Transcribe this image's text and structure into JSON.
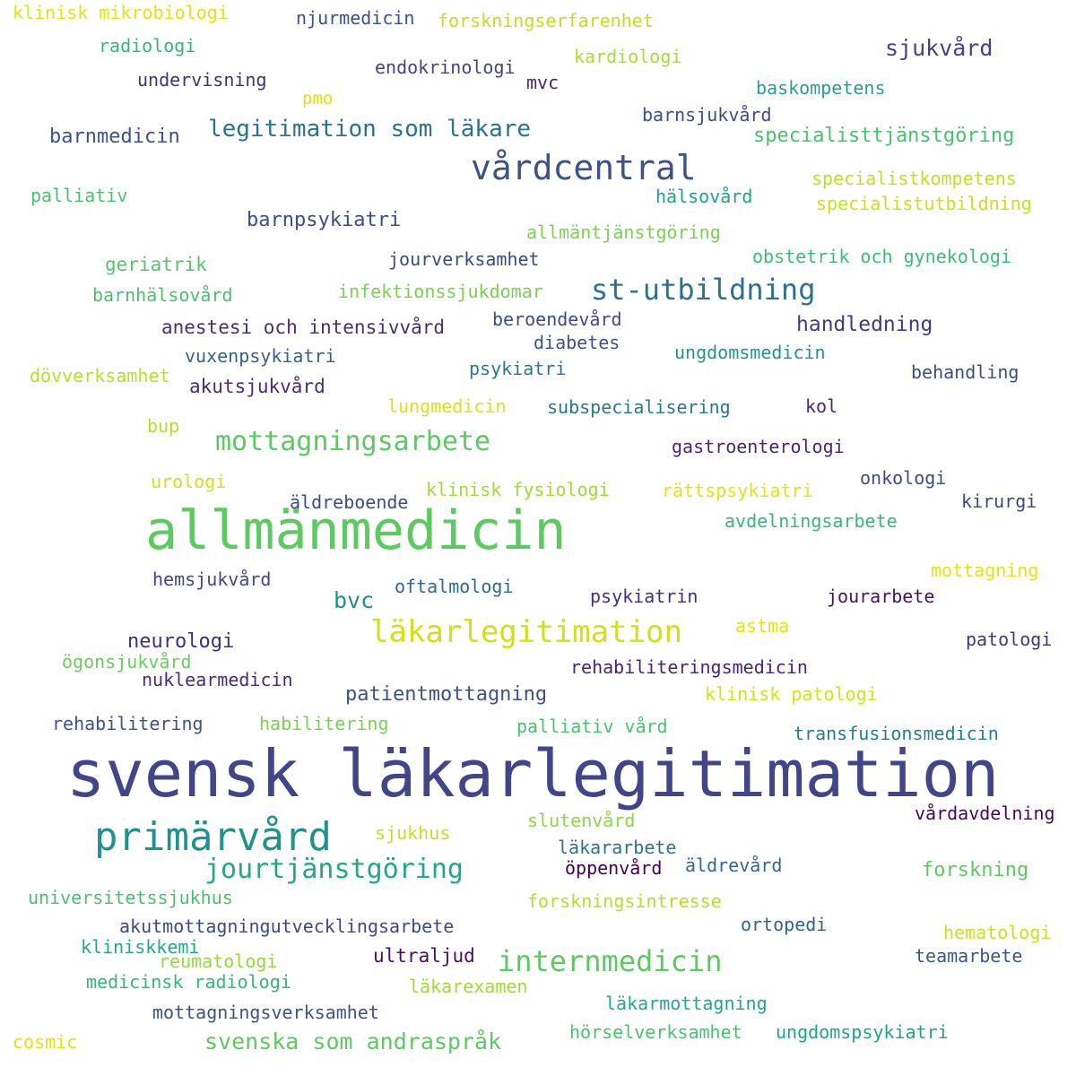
{
  "words": [
    {
      "text": "svensk läkarlegitimation",
      "color": "#404688"
    },
    {
      "text": "allmänmedicin",
      "color": "#5ec962"
    },
    {
      "text": "primärvård",
      "color": "#21918c"
    },
    {
      "text": "vårdcentral",
      "color": "#3b528b"
    },
    {
      "text": "läkarlegitimation",
      "color": "#d0e11c"
    },
    {
      "text": "st-utbildning",
      "color": "#2c728e"
    },
    {
      "text": "internmedicin",
      "color": "#5ec962"
    },
    {
      "text": "mottagningsarbete",
      "color": "#5ec962"
    },
    {
      "text": "jourtjänstgöring",
      "color": "#22a884"
    },
    {
      "text": "legitimation som läkare",
      "color": "#2c728e"
    },
    {
      "text": "svenska som andraspråk",
      "color": "#5ec962"
    },
    {
      "text": "sjukvård",
      "color": "#414487"
    },
    {
      "text": "bvc",
      "color": "#21918c"
    },
    {
      "text": "handledning",
      "color": "#443983"
    },
    {
      "text": "patientmottagning",
      "color": "#3b528b"
    },
    {
      "text": "forskning",
      "color": "#5ec962"
    },
    {
      "text": "barnmedicin",
      "color": "#3b528b"
    },
    {
      "text": "specialisttjänstgöring",
      "color": "#4ac16d"
    },
    {
      "text": "barnpsykiatri",
      "color": "#3e4c8a"
    },
    {
      "text": "neurologi",
      "color": "#3f2f7e"
    },
    {
      "text": "akutsjukvård",
      "color": "#472d7b"
    },
    {
      "text": "specialistkompetens",
      "color": "#bddf26"
    },
    {
      "text": "specialistutbildning",
      "color": "#c8e020"
    },
    {
      "text": "klinisk mikrobiologi",
      "color": "#dfe318"
    },
    {
      "text": "njurmedicin",
      "color": "#3b528b"
    },
    {
      "text": "forskningserfarenhet",
      "color": "#bddf26"
    },
    {
      "text": "radiologi",
      "color": "#35b779"
    },
    {
      "text": "kardiologi",
      "color": "#a8db34"
    },
    {
      "text": "endokrinologi",
      "color": "#414487"
    },
    {
      "text": "undervisning",
      "color": "#46307e"
    },
    {
      "text": "mvc",
      "color": "#482576"
    },
    {
      "text": "pmo",
      "color": "#d8e219"
    },
    {
      "text": "baskompetens",
      "color": "#2a9d8f"
    },
    {
      "text": "barnsjukvård",
      "color": "#3e4c8a"
    },
    {
      "text": "palliativ",
      "color": "#4ac16d"
    },
    {
      "text": "hälsovård",
      "color": "#1fa187"
    },
    {
      "text": "allmäntjänstgöring",
      "color": "#7ad151"
    },
    {
      "text": "geriatrik",
      "color": "#54c568"
    },
    {
      "text": "jourverksamhet",
      "color": "#3e4989"
    },
    {
      "text": "obstetrik och gynekologi",
      "color": "#3dbc74"
    },
    {
      "text": "barnhälsovård",
      "color": "#4ac16d"
    },
    {
      "text": "infektionssjukdomar",
      "color": "#7ad151"
    },
    {
      "text": "anestesi och intensivvård",
      "color": "#472d7b"
    },
    {
      "text": "beroendevård",
      "color": "#3e4989"
    },
    {
      "text": "diabetes",
      "color": "#39568c"
    },
    {
      "text": "ungdomsmedicin",
      "color": "#1f968b"
    },
    {
      "text": "vuxenpsykiatri",
      "color": "#33638d"
    },
    {
      "text": "psykiatri",
      "color": "#2a788e"
    },
    {
      "text": "behandling",
      "color": "#3e4c8a"
    },
    {
      "text": "dövverksamhet",
      "color": "#b5de2b"
    },
    {
      "text": "lungmedicin",
      "color": "#d8e219"
    },
    {
      "text": "subspecialisering",
      "color": "#2a788e"
    },
    {
      "text": "kol",
      "color": "#482878"
    },
    {
      "text": "bup",
      "color": "#b5de2b"
    },
    {
      "text": "gastroenterologi",
      "color": "#482677"
    },
    {
      "text": "urologi",
      "color": "#d0e11c"
    },
    {
      "text": "klinisk fysiologi",
      "color": "#a0da39"
    },
    {
      "text": "rättspsykiatri",
      "color": "#dfe318"
    },
    {
      "text": "onkologi",
      "color": "#3e4a89"
    },
    {
      "text": "äldreboende",
      "color": "#3e4989"
    },
    {
      "text": "kirurgi",
      "color": "#404588"
    },
    {
      "text": "avdelningsarbete",
      "color": "#35b779"
    },
    {
      "text": "mottagning",
      "color": "#dfe318"
    },
    {
      "text": "hemsjukvård",
      "color": "#3f4788"
    },
    {
      "text": "oftalmologi",
      "color": "#31688e"
    },
    {
      "text": "psykiatrin",
      "color": "#472f7d"
    },
    {
      "text": "jourarbete",
      "color": "#471164"
    },
    {
      "text": "astma",
      "color": "#dfe318"
    },
    {
      "text": "patologi",
      "color": "#453781"
    },
    {
      "text": "ögonsjukvård",
      "color": "#6ccd5a"
    },
    {
      "text": "rehabiliteringsmedicin",
      "color": "#482475"
    },
    {
      "text": "nuklearmedicin",
      "color": "#472a7a"
    },
    {
      "text": "klinisk patologi",
      "color": "#d2e21b"
    },
    {
      "text": "rehabilitering",
      "color": "#3b528b"
    },
    {
      "text": "habilitering",
      "color": "#7ad151"
    },
    {
      "text": "palliativ vård",
      "color": "#4ac16d"
    },
    {
      "text": "transfusionsmedicin",
      "color": "#287d8e"
    },
    {
      "text": "slutenvård",
      "color": "#8bd646"
    },
    {
      "text": "vårdavdelning",
      "color": "#46085c"
    },
    {
      "text": "sjukhus",
      "color": "#c2df23"
    },
    {
      "text": "läkararbete",
      "color": "#2c728e"
    },
    {
      "text": "öppenvård",
      "color": "#440154"
    },
    {
      "text": "äldrevård",
      "color": "#31688e"
    },
    {
      "text": "universitetssjukhus",
      "color": "#4ac16d"
    },
    {
      "text": "forskningsintresse",
      "color": "#b5de2b"
    },
    {
      "text": "akutmottagningutvecklingsarbete",
      "color": "#3e4989"
    },
    {
      "text": "ortopedi",
      "color": "#33638d"
    },
    {
      "text": "hematologi",
      "color": "#c8e020"
    },
    {
      "text": "kliniskkemi",
      "color": "#22a884"
    },
    {
      "text": "reumatologi",
      "color": "#95d840"
    },
    {
      "text": "ultraljud",
      "color": "#471063"
    },
    {
      "text": "teamarbete",
      "color": "#38598c"
    },
    {
      "text": "medicinsk radiologi",
      "color": "#35b779"
    },
    {
      "text": "läkarexamen",
      "color": "#a0da39"
    },
    {
      "text": "läkarmottagning",
      "color": "#22a884"
    },
    {
      "text": "mottagningsverksamhet",
      "color": "#3b528b"
    },
    {
      "text": "cosmic",
      "color": "#d8e219"
    },
    {
      "text": "hörselverksamhet",
      "color": "#4ac16d"
    },
    {
      "text": "ungdomspsykiatri",
      "color": "#20a486"
    }
  ]
}
